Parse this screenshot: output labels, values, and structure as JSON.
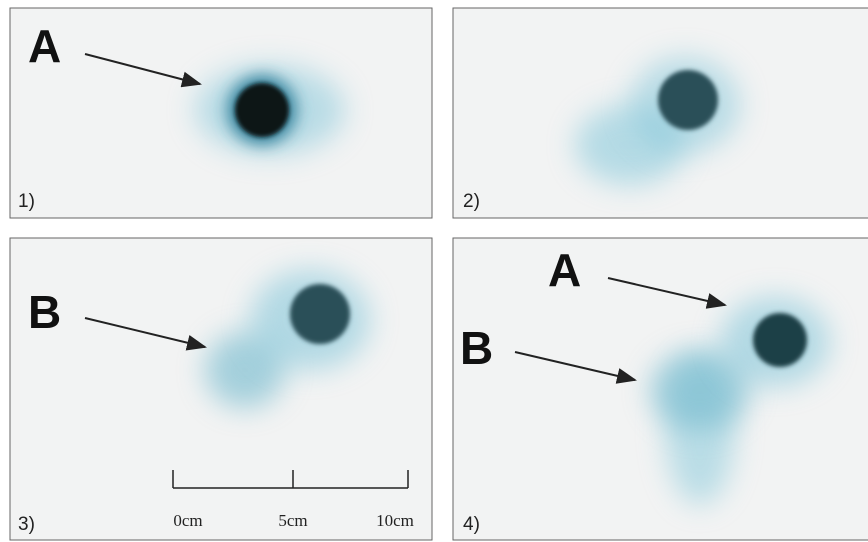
{
  "panels": [
    {
      "number": "1)",
      "annotations": [
        "A"
      ]
    },
    {
      "number": "2)"
    },
    {
      "number": "3)",
      "annotations": [
        "B"
      ],
      "scale_bar": [
        "0cm",
        "5cm",
        "10cm"
      ]
    },
    {
      "number": "4)",
      "annotations": [
        "A",
        "B"
      ]
    }
  ]
}
